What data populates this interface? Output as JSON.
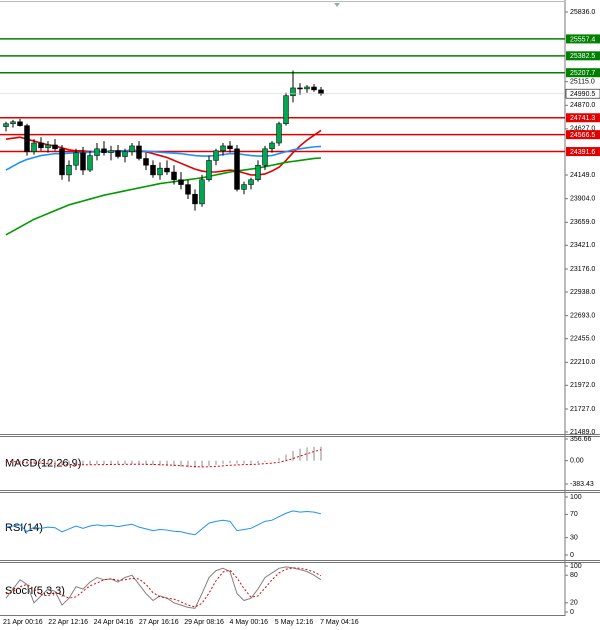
{
  "chart_data": [
    {
      "type": "candlestick",
      "open": [
        24650,
        24680,
        24700,
        24660,
        24390,
        24480,
        24430,
        24460,
        24420,
        24150,
        24250,
        24380,
        24200,
        24350,
        24420,
        24380,
        24400,
        24340,
        24390,
        24450,
        24320,
        24250,
        24150,
        24220,
        24180,
        24100,
        24050,
        23950,
        23850,
        24100,
        24300,
        24400,
        24450,
        24420,
        24000,
        24050,
        24100,
        24250,
        24420,
        24480,
        24680,
        24970,
        25050,
        25040,
        25060,
        25030
      ],
      "high": [
        24700,
        24720,
        24730,
        24680,
        24520,
        24540,
        24500,
        24520,
        24460,
        24300,
        24420,
        24440,
        24400,
        24480,
        24500,
        24450,
        24460,
        24420,
        24480,
        24500,
        24380,
        24300,
        24280,
        24300,
        24250,
        24180,
        24100,
        24000,
        24150,
        24350,
        24420,
        24480,
        24500,
        24460,
        24080,
        24120,
        24300,
        24450,
        24500,
        24700,
        25000,
        25230,
        25100,
        25080,
        25090,
        25060
      ],
      "low": [
        24600,
        24640,
        24650,
        24350,
        24360,
        24400,
        24380,
        24400,
        24100,
        24080,
        24200,
        24150,
        24180,
        24300,
        24350,
        24300,
        24320,
        24280,
        24350,
        24300,
        24200,
        24120,
        24100,
        24150,
        24050,
        24000,
        23900,
        23780,
        23820,
        24080,
        24250,
        24350,
        24380,
        23980,
        23950,
        24000,
        24080,
        24200,
        24380,
        24450,
        24660,
        24900,
        24980,
        25000,
        25010,
        24970
      ],
      "close": [
        24680,
        24700,
        24660,
        24390,
        24480,
        24430,
        24460,
        24420,
        24150,
        24250,
        24380,
        24200,
        24350,
        24420,
        24380,
        24400,
        24340,
        24390,
        24450,
        24320,
        24250,
        24150,
        24220,
        24180,
        24100,
        24050,
        23950,
        23850,
        24100,
        24300,
        24400,
        24450,
        24420,
        24000,
        24050,
        24100,
        24250,
        24420,
        24480,
        24680,
        24970,
        25050,
        25040,
        25060,
        25030,
        24990.5
      ],
      "up_color": "#00a651",
      "down_color": "#000000",
      "series": [
        {
          "color": "#e00000",
          "values": [
            24520,
            24530,
            24540,
            24520,
            24500,
            24480,
            24460,
            24450,
            24430,
            24410,
            24400,
            24400,
            24390,
            24390,
            24390,
            24395,
            24400,
            24400,
            24405,
            24400,
            24390,
            24370,
            24350,
            24330,
            24300,
            24270,
            24240,
            24210,
            24190,
            24180,
            24180,
            24190,
            24200,
            24190,
            24170,
            24150,
            24150,
            24160,
            24190,
            24230,
            24300,
            24380,
            24450,
            24510,
            24560,
            24610
          ]
        },
        {
          "color": "#1e90ff",
          "values": [
            24200,
            24240,
            24280,
            24310,
            24330,
            24350,
            24360,
            24370,
            24370,
            24375,
            24380,
            24380,
            24385,
            24390,
            24390,
            24395,
            24395,
            24400,
            24400,
            24400,
            24395,
            24390,
            24385,
            24380,
            24375,
            24370,
            24360,
            24350,
            24345,
            24345,
            24350,
            24360,
            24370,
            24370,
            24360,
            24350,
            24345,
            24345,
            24350,
            24370,
            24390,
            24410,
            24420,
            24430,
            24440,
            24445
          ]
        },
        {
          "color": "#009900",
          "values": [
            23530,
            23570,
            23610,
            23650,
            23690,
            23720,
            23750,
            23780,
            23810,
            23840,
            23860,
            23880,
            23900,
            23920,
            23940,
            23955,
            23970,
            23985,
            24000,
            24015,
            24030,
            24045,
            24060,
            24070,
            24080,
            24090,
            24100,
            24110,
            24120,
            24135,
            24150,
            24165,
            24180,
            24190,
            24200,
            24210,
            24220,
            24235,
            24250,
            24265,
            24280,
            24290,
            24300,
            24310,
            24320,
            24325
          ]
        }
      ],
      "resistance_levels": [
        25557.4,
        25382.5,
        25207.7
      ],
      "resistance_color": "#008000",
      "support_levels": [
        24741.3,
        24566.5,
        24391.6
      ],
      "support_color": "#e00000",
      "last_price": 24990.5,
      "ylim": [
        21489,
        25836
      ],
      "yticks": [
        {
          "value": 25836,
          "label": "25836.0"
        },
        {
          "value": 25115,
          "label": "25115.0"
        },
        {
          "value": 24870,
          "label": "24870.0"
        },
        {
          "value": 24627,
          "label": "24627.0"
        },
        {
          "value": 24149,
          "label": "24149.0"
        },
        {
          "value": 23904,
          "label": "23904.0"
        },
        {
          "value": 23659,
          "label": "23659.0"
        },
        {
          "value": 23421,
          "label": "23421.0"
        },
        {
          "value": 23176,
          "label": "23176.0"
        },
        {
          "value": 22938,
          "label": "22938.0"
        },
        {
          "value": 22693,
          "label": "22693.0"
        },
        {
          "value": 22455,
          "label": "22455.0"
        },
        {
          "value": 22210,
          "label": "22210.0"
        },
        {
          "value": 21972,
          "label": "21972.0"
        },
        {
          "value": 21727,
          "label": "21727.0"
        },
        {
          "value": 21489,
          "label": "21489.0"
        }
      ],
      "x_labels": [
        "21 Apr 00:16",
        "22 Apr 12:16",
        "24 Apr 04:16",
        "27 Apr 16:16",
        "29 Apr 08:16",
        "4 May 00:16",
        "5 May 12:16",
        "7 May 04:16"
      ]
    },
    {
      "type": "macd",
      "title": "MACD(12,26,9)",
      "series": [
        {
          "type": "bar",
          "color": "#a0a0a0",
          "values": [
            -20,
            -30,
            -40,
            -50,
            -50,
            -55,
            -60,
            -60,
            -65,
            -70,
            -70,
            -70,
            -65,
            -60,
            -60,
            -60,
            -60,
            -55,
            -55,
            -60,
            -65,
            -70,
            -80,
            -85,
            -90,
            -100,
            -110,
            -120,
            -110,
            -90,
            -70,
            -50,
            -40,
            -45,
            -50,
            -50,
            -40,
            -20,
            0,
            40,
            100,
            160,
            200,
            220,
            230,
            230
          ]
        },
        {
          "type": "line",
          "color": "#e00000",
          "dash": true,
          "values": [
            -10,
            -15,
            -25,
            -35,
            -40,
            -45,
            -50,
            -55,
            -58,
            -62,
            -65,
            -67,
            -67,
            -66,
            -64,
            -62,
            -61,
            -60,
            -58,
            -58,
            -60,
            -62,
            -66,
            -70,
            -75,
            -82,
            -90,
            -98,
            -102,
            -100,
            -94,
            -85,
            -76,
            -70,
            -65,
            -62,
            -57,
            -50,
            -40,
            -25,
            0,
            35,
            75,
            115,
            150,
            180
          ]
        }
      ],
      "ylim": [
        -383.43,
        356.66
      ],
      "yticks": [
        356.66,
        {
          "value": 0,
          "label": "0.00"
        },
        -383.43
      ]
    },
    {
      "type": "line",
      "title": "RSI(14)",
      "series": [
        {
          "color": "#1e90ff",
          "values": [
            48,
            50,
            52,
            40,
            48,
            46,
            48,
            47,
            40,
            45,
            50,
            46,
            50,
            52,
            50,
            51,
            49,
            51,
            53,
            48,
            45,
            42,
            44,
            43,
            41,
            40,
            37,
            35,
            45,
            55,
            58,
            60,
            58,
            42,
            44,
            46,
            52,
            58,
            60,
            66,
            72,
            76,
            74,
            75,
            74,
            71
          ]
        }
      ],
      "ylim": [
        0,
        100
      ],
      "yticks": [
        100,
        70,
        30,
        0
      ]
    },
    {
      "type": "line",
      "title": "Stoch(5,3,3)",
      "series": [
        {
          "color": "#808080",
          "values": [
            30,
            50,
            70,
            60,
            20,
            35,
            50,
            45,
            15,
            30,
            55,
            50,
            65,
            75,
            70,
            72,
            65,
            75,
            80,
            60,
            40,
            25,
            35,
            30,
            20,
            15,
            10,
            8,
            40,
            75,
            90,
            95,
            88,
            40,
            25,
            30,
            50,
            75,
            85,
            95,
            98,
            96,
            92,
            88,
            80,
            70
          ]
        },
        {
          "color": "#e00000",
          "dash": true,
          "values": [
            40,
            45,
            55,
            60,
            50,
            38,
            35,
            43,
            37,
            30,
            33,
            45,
            57,
            63,
            70,
            72,
            69,
            70,
            73,
            72,
            60,
            42,
            33,
            30,
            28,
            22,
            15,
            11,
            19,
            41,
            68,
            87,
            91,
            74,
            51,
            32,
            35,
            52,
            70,
            85,
            93,
            96,
            95,
            92,
            87,
            79
          ]
        }
      ],
      "ylim": [
        0,
        100
      ],
      "yticks": [
        100,
        80,
        20,
        0
      ]
    }
  ]
}
